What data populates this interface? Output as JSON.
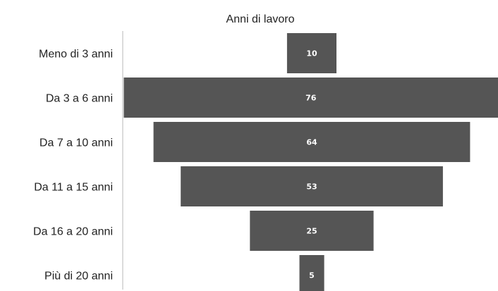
{
  "chart_data": {
    "type": "bar",
    "subtype": "funnel",
    "title": "Anni di lavoro",
    "categories": [
      "Meno di 3 anni",
      "Da 3 a 6 anni",
      "Da 7 a 10 anni",
      "Da 11 a 15 anni",
      "Da 16 a 20 anni",
      "Più di 20 anni"
    ],
    "values": [
      10,
      76,
      64,
      53,
      25,
      5
    ],
    "xlabel": "",
    "ylabel": "",
    "grid": false,
    "legend": "none",
    "bar_color": "#555555",
    "axis_color": "#cfcfcf",
    "label_color": "#ffffff"
  }
}
